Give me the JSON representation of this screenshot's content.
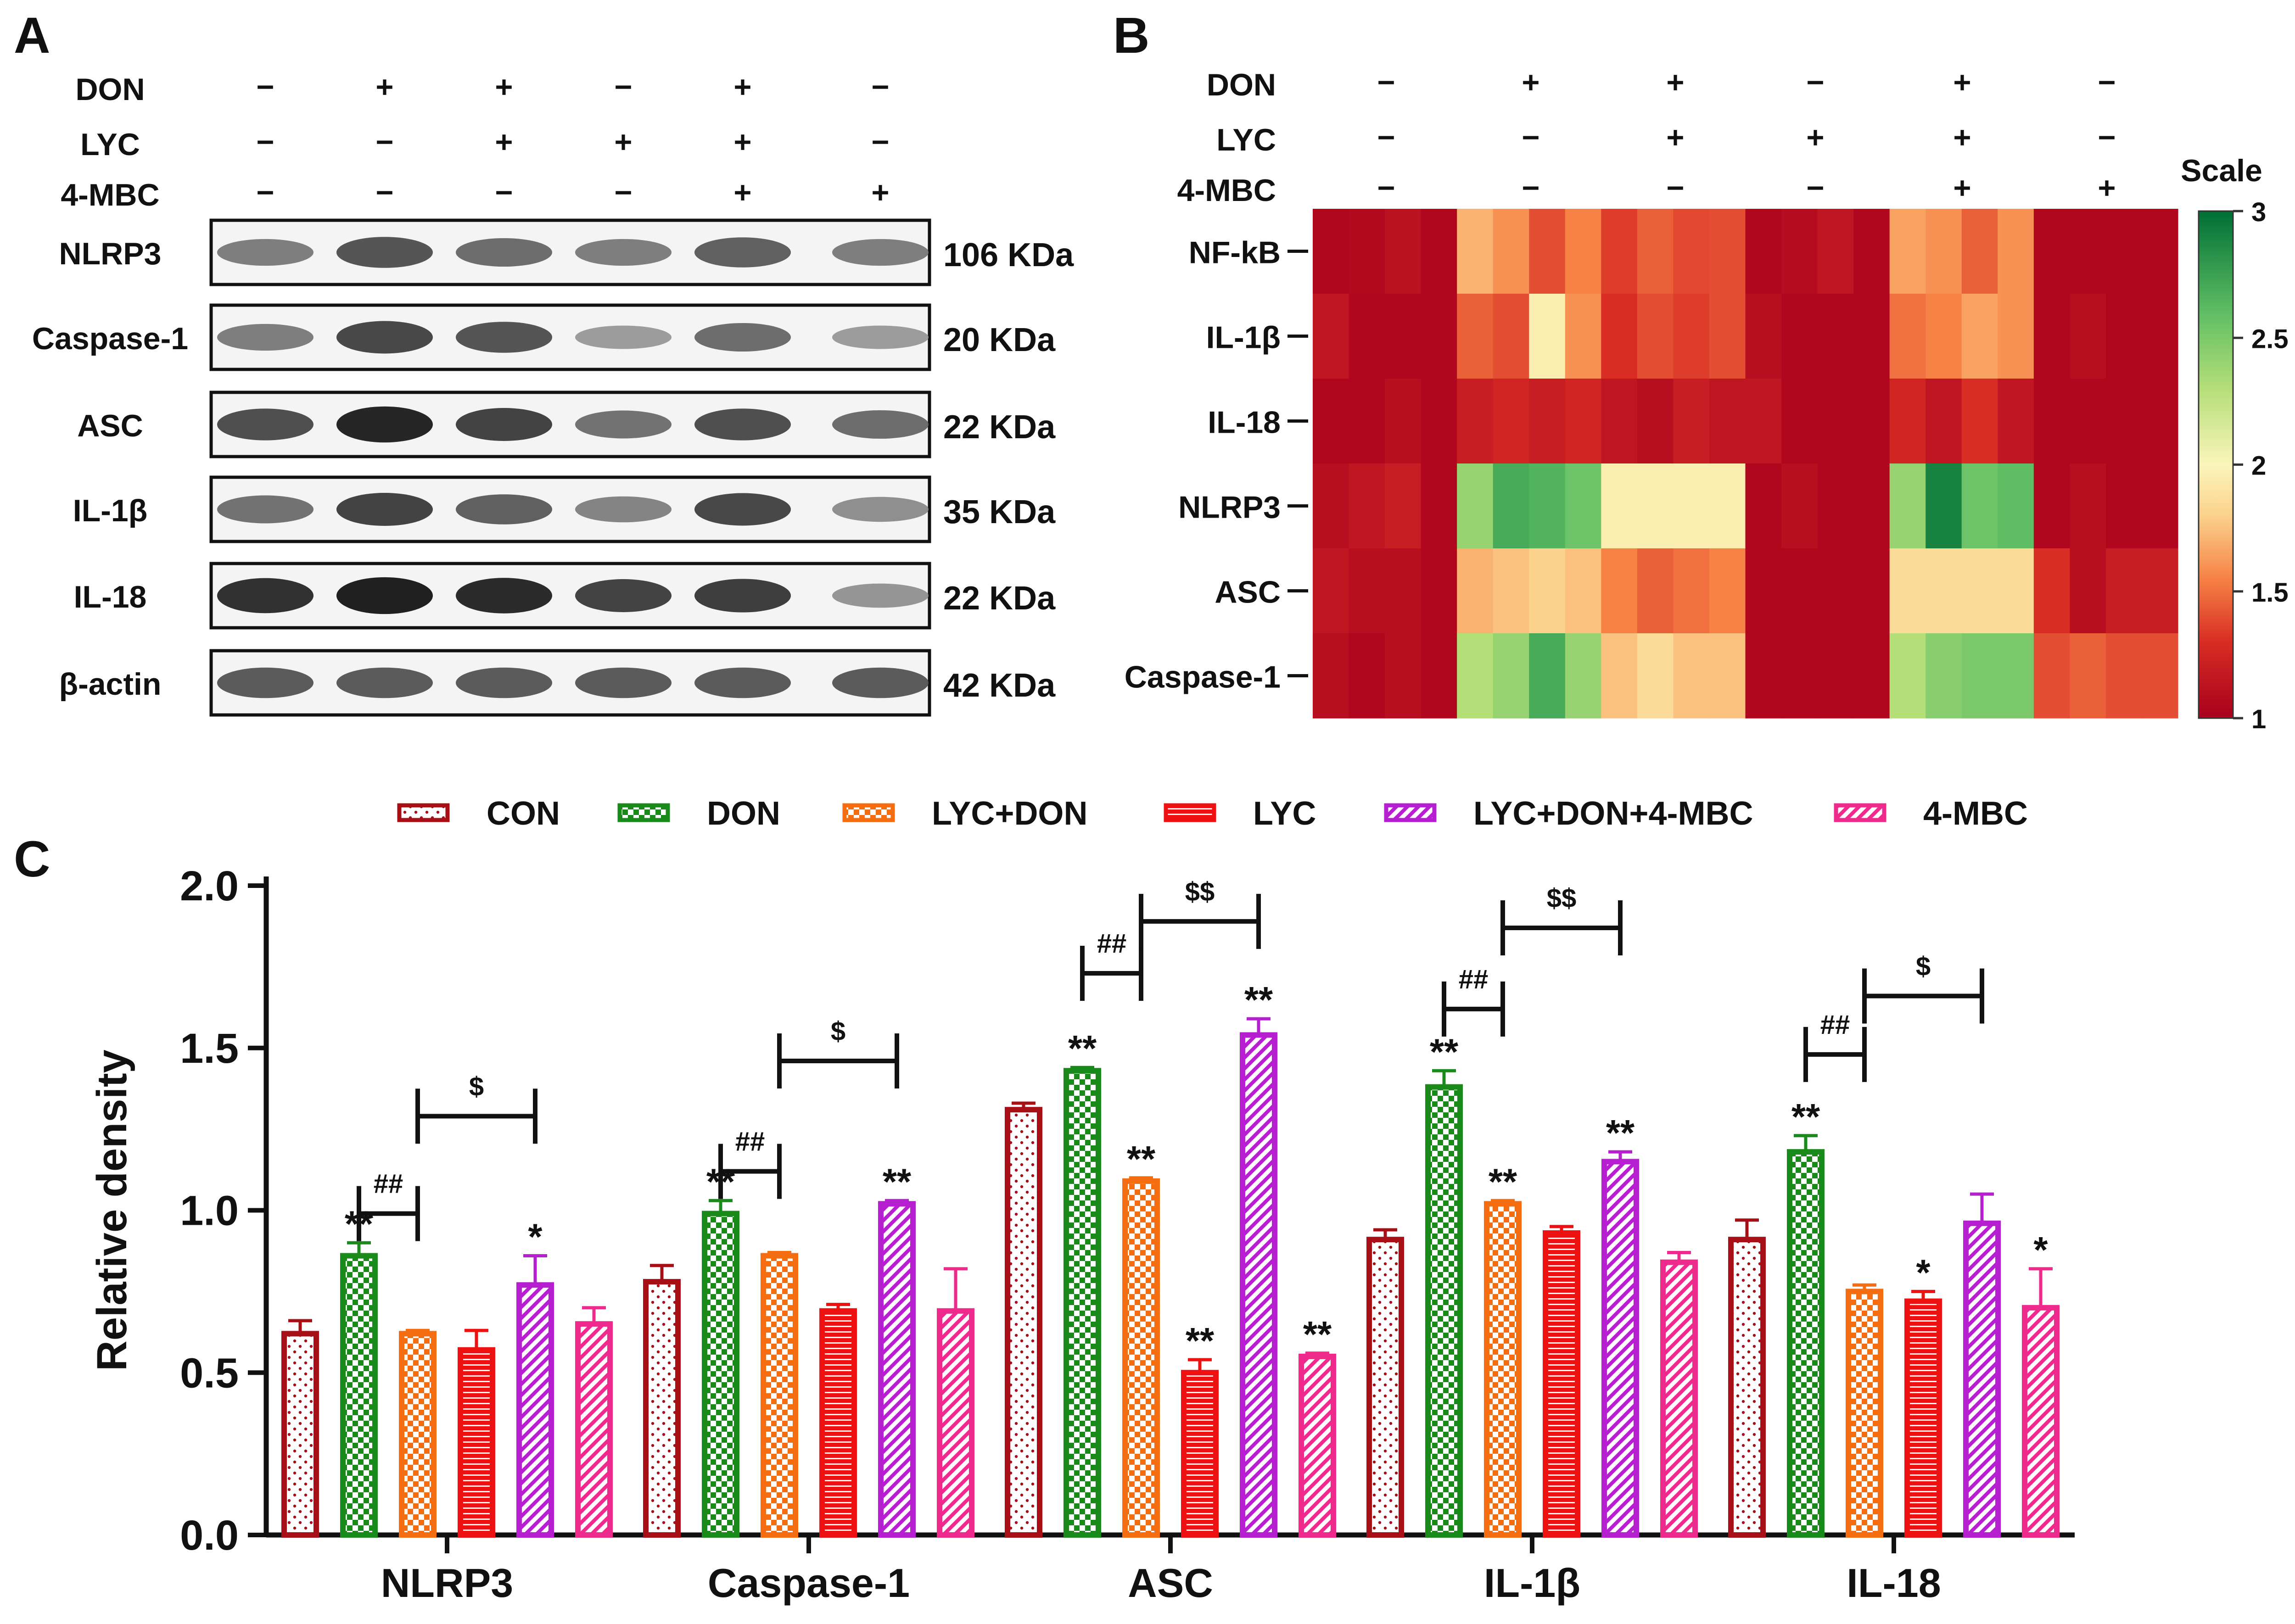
{
  "panels": {
    "a": {
      "letter": "A",
      "row_labels": [
        "DON",
        "LYC",
        "4-MBC"
      ],
      "treatments": [
        [
          "−",
          "+",
          "+",
          "−",
          "+",
          "−"
        ],
        [
          "−",
          "−",
          "+",
          "+",
          "+",
          "−"
        ],
        [
          "−",
          "−",
          "−",
          "−",
          "+",
          "+"
        ]
      ],
      "blots": [
        {
          "name": "NLRP3",
          "kda": "106 KDa",
          "intensity": [
            0.55,
            0.72,
            0.62,
            0.55,
            0.68,
            0.55
          ]
        },
        {
          "name": "Caspase-1",
          "kda": "20 KDa",
          "intensity": [
            0.55,
            0.78,
            0.72,
            0.42,
            0.62,
            0.42
          ]
        },
        {
          "name": "ASC",
          "kda": "22 KDa",
          "intensity": [
            0.75,
            0.92,
            0.8,
            0.6,
            0.75,
            0.62
          ]
        },
        {
          "name": "IL-1β",
          "kda": "35 KDa",
          "intensity": [
            0.6,
            0.8,
            0.68,
            0.52,
            0.78,
            0.48
          ]
        },
        {
          "name": "IL-18",
          "kda": "22 KDa",
          "intensity": [
            0.88,
            0.95,
            0.9,
            0.8,
            0.82,
            0.45
          ]
        },
        {
          "name": "β-actin",
          "kda": "42 KDa",
          "intensity": [
            0.7,
            0.7,
            0.7,
            0.7,
            0.7,
            0.7
          ]
        }
      ]
    },
    "b": {
      "letter": "B",
      "row_labels": [
        "DON",
        "LYC",
        "4-MBC"
      ],
      "treatments": [
        [
          "−",
          "+",
          "+",
          "−",
          "+",
          "−"
        ],
        [
          "−",
          "−",
          "+",
          "+",
          "+",
          "−"
        ],
        [
          "−",
          "−",
          "−",
          "−",
          "+",
          "+"
        ]
      ]
    },
    "c": {
      "letter": "C"
    }
  },
  "chart_data": [
    {
      "type": "heatmap",
      "rows": [
        "NF-kB",
        "IL-1β",
        "IL-18",
        "NLRP3",
        "ASC",
        "Caspase-1"
      ],
      "n_columns": 24,
      "values": [
        [
          1.05,
          1.06,
          1.12,
          1.05,
          1.7,
          1.6,
          1.4,
          1.55,
          1.35,
          1.45,
          1.38,
          1.4,
          1.05,
          1.08,
          1.15,
          1.05,
          1.65,
          1.6,
          1.45,
          1.6,
          1.05,
          1.05,
          1.05,
          1.05
        ],
        [
          1.15,
          1.05,
          1.05,
          1.05,
          1.45,
          1.4,
          1.95,
          1.6,
          1.3,
          1.4,
          1.35,
          1.4,
          1.1,
          1.05,
          1.05,
          1.05,
          1.5,
          1.55,
          1.65,
          1.6,
          1.05,
          1.1,
          1.05,
          1.05
        ],
        [
          1.05,
          1.05,
          1.1,
          1.05,
          1.2,
          1.25,
          1.2,
          1.25,
          1.15,
          1.1,
          1.2,
          1.15,
          1.15,
          1.05,
          1.05,
          1.05,
          1.25,
          1.15,
          1.3,
          1.15,
          1.05,
          1.05,
          1.05,
          1.05
        ],
        [
          1.1,
          1.15,
          1.2,
          1.05,
          2.4,
          2.7,
          2.65,
          2.55,
          1.95,
          1.95,
          1.95,
          1.95,
          1.05,
          1.1,
          1.05,
          1.05,
          2.4,
          2.9,
          2.55,
          2.6,
          1.05,
          1.1,
          1.05,
          1.05
        ],
        [
          1.15,
          1.1,
          1.1,
          1.05,
          1.7,
          1.75,
          1.8,
          1.75,
          1.55,
          1.45,
          1.5,
          1.55,
          1.05,
          1.05,
          1.05,
          1.05,
          1.85,
          1.85,
          1.85,
          1.85,
          1.3,
          1.1,
          1.2,
          1.2
        ],
        [
          1.1,
          1.05,
          1.1,
          1.05,
          2.3,
          2.4,
          2.7,
          2.4,
          1.75,
          1.85,
          1.75,
          1.75,
          1.05,
          1.05,
          1.05,
          1.05,
          2.3,
          2.45,
          2.5,
          2.5,
          1.4,
          1.45,
          1.4,
          1.4
        ]
      ],
      "colorbar": {
        "title": "Scale",
        "min": 1,
        "max": 3,
        "ticks": [
          "1",
          "1.5",
          "2",
          "2.5",
          "3"
        ]
      },
      "colors": {
        "low": "#a8001e",
        "mid_low": "#e6472e",
        "orange": "#f8a055",
        "mid": "#fbf5bb",
        "high_mid": "#9bd263",
        "high": "#006f35"
      }
    },
    {
      "type": "bar",
      "categories": [
        "NLRP3",
        "Caspase-1",
        "ASC",
        "IL-1β",
        "IL-18"
      ],
      "ylabel": "Relative density",
      "ylim": [
        0,
        2.0
      ],
      "yticks": [
        "0.0",
        "0.5",
        "1.0",
        "1.5",
        "2.0"
      ],
      "legend_position": "top",
      "series": [
        {
          "name": "CON",
          "color": "#a50f15",
          "pattern": "dots",
          "values": [
            0.62,
            0.78,
            1.31,
            0.91,
            0.91
          ],
          "errors": [
            0.04,
            0.05,
            0.02,
            0.03,
            0.06
          ],
          "sig": [
            "",
            "",
            "",
            "",
            ""
          ]
        },
        {
          "name": "DON",
          "color": "#1a8a1a",
          "pattern": "checker",
          "values": [
            0.86,
            0.99,
            1.43,
            1.38,
            1.18
          ],
          "errors": [
            0.04,
            0.04,
            0.01,
            0.05,
            0.05
          ],
          "sig": [
            "**",
            "**",
            "**",
            "**",
            "**"
          ]
        },
        {
          "name": "LYC+DON",
          "color": "#f46d10",
          "pattern": "checker",
          "values": [
            0.62,
            0.86,
            1.09,
            1.02,
            0.75
          ],
          "errors": [
            0.01,
            0.01,
            0.01,
            0.01,
            0.02
          ],
          "sig": [
            "",
            "",
            "**",
            "**",
            ""
          ]
        },
        {
          "name": "LYC",
          "color": "#ee1111",
          "pattern": "hlines",
          "values": [
            0.57,
            0.69,
            0.5,
            0.93,
            0.72
          ],
          "errors": [
            0.06,
            0.02,
            0.04,
            0.02,
            0.03
          ],
          "sig": [
            "",
            "",
            "**",
            "",
            "*"
          ]
        },
        {
          "name": "LYC+DON+4-MBC",
          "color": "#b61fcf",
          "pattern": "diag",
          "values": [
            0.77,
            1.02,
            1.54,
            1.15,
            0.96
          ],
          "errors": [
            0.09,
            0.01,
            0.05,
            0.03,
            0.09
          ],
          "sig": [
            "*",
            "**",
            "**",
            "**",
            ""
          ]
        },
        {
          "name": "4-MBC",
          "color": "#ee2b8c",
          "pattern": "diag",
          "values": [
            0.65,
            0.69,
            0.55,
            0.84,
            0.7
          ],
          "errors": [
            0.05,
            0.13,
            0.01,
            0.03,
            0.12
          ],
          "sig": [
            "",
            "",
            "**",
            "",
            "*"
          ]
        }
      ],
      "comparisons": [
        {
          "category": 0,
          "from": 1,
          "to": 2,
          "level": 0.99,
          "label": "##"
        },
        {
          "category": 0,
          "from": 2,
          "to": 4,
          "level": 1.29,
          "label": "$"
        },
        {
          "category": 1,
          "from": 1,
          "to": 2,
          "level": 1.12,
          "label": "##"
        },
        {
          "category": 1,
          "from": 2,
          "to": 4,
          "level": 1.46,
          "label": "$"
        },
        {
          "category": 2,
          "from": 1,
          "to": 2,
          "level": 1.73,
          "label": "##"
        },
        {
          "category": 2,
          "from": 2,
          "to": 4,
          "level": 1.89,
          "label": "$$"
        },
        {
          "category": 3,
          "from": 1,
          "to": 2,
          "level": 1.62,
          "label": "##"
        },
        {
          "category": 3,
          "from": 2,
          "to": 4,
          "level": 1.87,
          "label": "$$"
        },
        {
          "category": 4,
          "from": 1,
          "to": 2,
          "level": 1.48,
          "label": "##"
        },
        {
          "category": 4,
          "from": 2,
          "to": 4,
          "level": 1.66,
          "label": "$"
        }
      ]
    }
  ]
}
